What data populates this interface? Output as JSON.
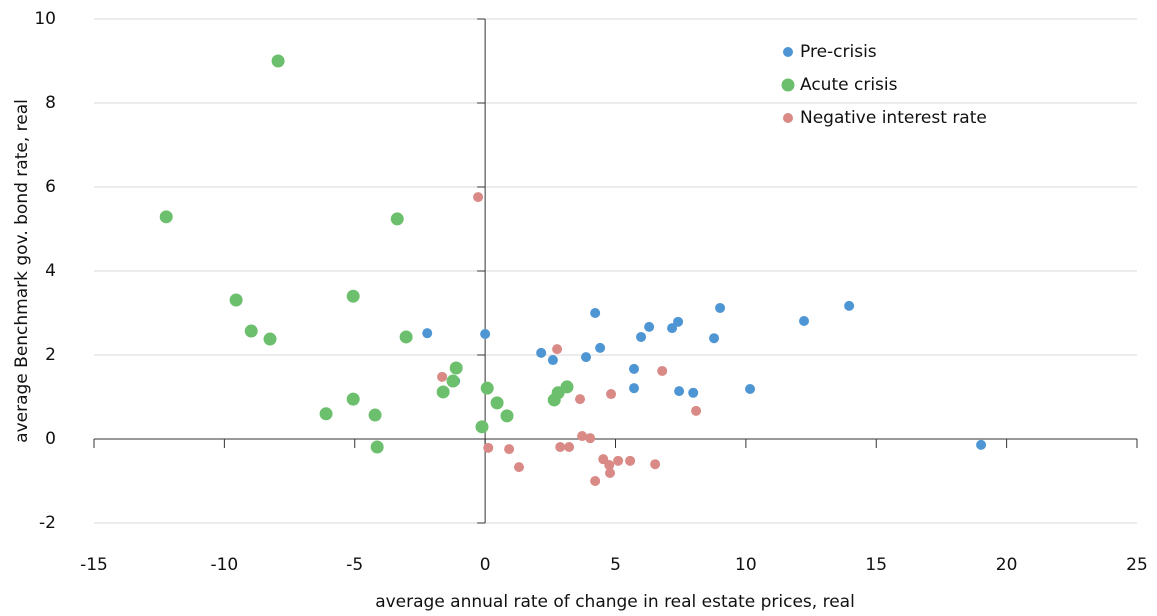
{
  "chart_data": {
    "type": "scatter",
    "x_label": "average annual rate of change in real estate prices, real",
    "y_label": "average Benchmark gov. bond rate, real",
    "xlim": [
      -15,
      25
    ],
    "xticks": [
      -15,
      -10,
      -5,
      0,
      5,
      10,
      15,
      20,
      25
    ],
    "ylim": [
      -2,
      10
    ],
    "yticks": [
      -2,
      0,
      2,
      4,
      6,
      8,
      10
    ],
    "grid": true,
    "legend": "upper right",
    "series": [
      {
        "name": "Pre-crisis",
        "color": "#4e95d4",
        "size": 5,
        "x": [
          -2.22,
          0,
          -1.15,
          2.15,
          2.6,
          3.87,
          4.22,
          4.41,
          5.71,
          5.71,
          5.98,
          6.29,
          7.17,
          7.4,
          7.44,
          7.98,
          8.78,
          9.01,
          10.16,
          12.23,
          13.96,
          19.02
        ],
        "values": [
          2.52,
          2.5,
          1.38,
          2.05,
          1.88,
          1.95,
          3.0,
          2.17,
          1.67,
          1.21,
          2.43,
          2.67,
          2.64,
          2.79,
          1.14,
          1.1,
          2.4,
          3.12,
          1.19,
          2.81,
          3.17,
          -0.14
        ]
      },
      {
        "name": "Acute crisis",
        "color": "#6cbf6c",
        "size": 6.5,
        "x": [
          -7.94,
          -12.23,
          -3.37,
          -9.55,
          -5.06,
          -8.97,
          -8.25,
          -3.03,
          -1.11,
          -1.23,
          -1.61,
          -6.1,
          -5.06,
          -4.22,
          -4.14,
          -0.12,
          0.08,
          0.46,
          0.84,
          2.65,
          2.8,
          3.14
        ],
        "values": [
          9.0,
          5.29,
          5.24,
          3.31,
          3.4,
          2.57,
          2.38,
          2.43,
          1.69,
          1.38,
          1.12,
          0.6,
          0.95,
          0.57,
          -0.19,
          0.29,
          1.21,
          0.86,
          0.55,
          0.93,
          1.1,
          1.24
        ]
      },
      {
        "name": "Negative interest rate",
        "color": "#d98a86",
        "size": 5,
        "x": [
          -0.27,
          -1.65,
          2.76,
          0.12,
          0.92,
          1.3,
          2.88,
          3.22,
          3.64,
          3.72,
          4.03,
          4.22,
          4.53,
          4.76,
          4.79,
          4.83,
          5.1,
          5.56,
          6.52,
          6.79,
          8.09
        ],
        "values": [
          5.76,
          1.48,
          2.14,
          -0.21,
          -0.24,
          -0.67,
          -0.19,
          -0.19,
          0.95,
          0.07,
          0.02,
          -1.0,
          -0.48,
          -0.62,
          -0.81,
          1.07,
          -0.52,
          -0.52,
          -0.6,
          1.62,
          0.67
        ]
      }
    ]
  }
}
